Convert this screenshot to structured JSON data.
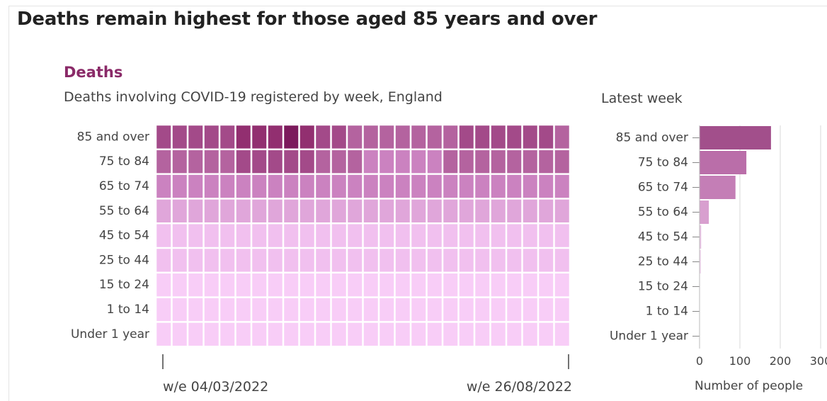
{
  "header": {
    "title": "Deaths remain highest for those aged 85 years and over"
  },
  "chart_data": [
    {
      "type": "heatmap",
      "title": "Deaths",
      "subtitle": "Deaths involving COVID-19 registered by week, England",
      "rows": [
        "85 and over",
        "75 to 84",
        "65 to 74",
        "55 to 64",
        "45 to 54",
        "25 to 44",
        "15 to 24",
        "1 to 14",
        "Under 1 year"
      ],
      "columns_count": 26,
      "x_tick_labels": [
        "w/e 04/03/2022",
        "w/e 26/08/2022"
      ],
      "intensity": [
        [
          5,
          5,
          5,
          5,
          5,
          6,
          6,
          6,
          7,
          6,
          5,
          5,
          4,
          4,
          4,
          4,
          4,
          4,
          4,
          5,
          5,
          5,
          5,
          5,
          5,
          4
        ],
        [
          4,
          4,
          4,
          4,
          4,
          5,
          5,
          5,
          5,
          5,
          4,
          4,
          4,
          3,
          3,
          3,
          3,
          3,
          4,
          4,
          4,
          4,
          4,
          4,
          4,
          4
        ],
        [
          3,
          3,
          3,
          3,
          3,
          3,
          3,
          3,
          3,
          3,
          3,
          3,
          3,
          3,
          3,
          3,
          3,
          3,
          3,
          3,
          3,
          3,
          3,
          3,
          3,
          3
        ],
        [
          2,
          2,
          2,
          2,
          2,
          2,
          2,
          2,
          2,
          2,
          2,
          2,
          2,
          2,
          2,
          2,
          2,
          2,
          2,
          2,
          2,
          2,
          2,
          2,
          2,
          2
        ],
        [
          1,
          1,
          1,
          1,
          1,
          1,
          1,
          1,
          1,
          1,
          1,
          1,
          1,
          1,
          1,
          1,
          1,
          1,
          1,
          1,
          1,
          1,
          1,
          1,
          1,
          1
        ],
        [
          1,
          1,
          1,
          1,
          1,
          1,
          1,
          1,
          1,
          1,
          1,
          1,
          1,
          1,
          1,
          1,
          1,
          1,
          1,
          1,
          1,
          1,
          1,
          1,
          1,
          1
        ],
        [
          0,
          0,
          0,
          0,
          0,
          0,
          0,
          0,
          0,
          0,
          0,
          0,
          0,
          0,
          0,
          0,
          0,
          0,
          0,
          0,
          0,
          0,
          0,
          0,
          0,
          0
        ],
        [
          0,
          0,
          0,
          0,
          0,
          0,
          0,
          0,
          0,
          0,
          0,
          0,
          0,
          0,
          0,
          0,
          0,
          0,
          0,
          0,
          0,
          0,
          0,
          0,
          0,
          0
        ],
        [
          0,
          0,
          0,
          0,
          0,
          0,
          0,
          0,
          0,
          0,
          0,
          0,
          0,
          0,
          0,
          0,
          0,
          0,
          0,
          0,
          0,
          0,
          0,
          0,
          0,
          0
        ]
      ],
      "colors": [
        "#f8cdf7",
        "#f1c0ef",
        "#e0a6da",
        "#cb82c0",
        "#b4639f",
        "#a34a89",
        "#922f70",
        "#7c1a5c"
      ]
    },
    {
      "type": "bar",
      "title": "Latest week",
      "categories": [
        "85 and over",
        "75 to 84",
        "65 to 74",
        "55 to 64",
        "45 to 54",
        "25 to 44",
        "15 to 24",
        "1 to 14",
        "Under 1 year"
      ],
      "values": [
        177,
        116,
        89,
        23,
        4,
        3,
        1,
        0,
        0
      ],
      "colors": [
        "#a24f8b",
        "#ba6ea9",
        "#c47eb6",
        "#d89fcf",
        "#e8c0e3",
        "#f0cfec",
        "#f5d8f3",
        "#f5d8f3",
        "#f5d8f3"
      ],
      "xlabel": "Number of people",
      "ylabel": "",
      "xlim": [
        0,
        300
      ],
      "x_ticks": [
        0,
        100,
        200,
        300
      ],
      "x_tick_labels": [
        "0",
        "100",
        "200",
        "300"
      ],
      "grid": true
    }
  ]
}
